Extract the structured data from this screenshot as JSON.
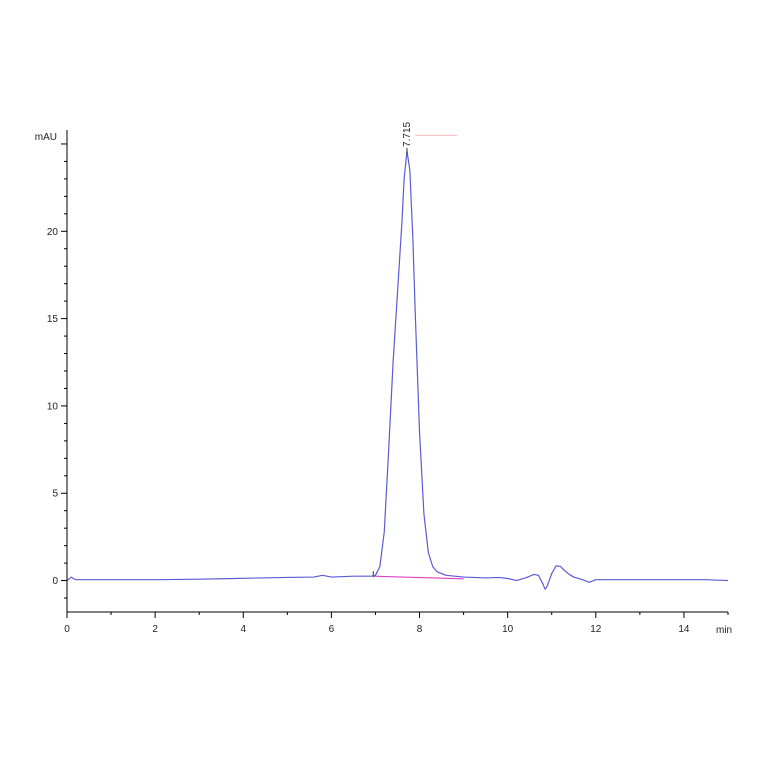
{
  "chart_data": {
    "type": "line",
    "title": "",
    "xlabel": "min",
    "ylabel": "mAU",
    "xlim": [
      0,
      15
    ],
    "ylim": [
      -1.8,
      25.8
    ],
    "x_ticks": [
      0,
      2,
      4,
      6,
      8,
      10,
      12,
      14
    ],
    "y_ticks": [
      0,
      5,
      10,
      15,
      20
    ],
    "grid": false,
    "legend": "none",
    "colors": {
      "trace": "#5b5bd6",
      "baseline": "#e040c0",
      "axis": "#000000"
    },
    "series": [
      {
        "color": "#5b5bd6",
        "points": [
          [
            0.0,
            0.0
          ],
          [
            0.05,
            0.1
          ],
          [
            0.1,
            0.2
          ],
          [
            0.15,
            0.1
          ],
          [
            0.2,
            0.05
          ],
          [
            0.5,
            0.05
          ],
          [
            1.0,
            0.05
          ],
          [
            2.0,
            0.05
          ],
          [
            3.0,
            0.08
          ],
          [
            3.8,
            0.12
          ],
          [
            4.0,
            0.13
          ],
          [
            5.0,
            0.18
          ],
          [
            5.6,
            0.2
          ],
          [
            5.8,
            0.3
          ],
          [
            6.0,
            0.2
          ],
          [
            6.5,
            0.25
          ],
          [
            6.9,
            0.25
          ],
          [
            7.0,
            0.3
          ],
          [
            7.1,
            0.8
          ],
          [
            7.2,
            2.8
          ],
          [
            7.3,
            7.5
          ],
          [
            7.4,
            12.5
          ],
          [
            7.5,
            16.5
          ],
          [
            7.6,
            20.5
          ],
          [
            7.65,
            23.0
          ],
          [
            7.715,
            24.6
          ],
          [
            7.78,
            23.5
          ],
          [
            7.85,
            19.5
          ],
          [
            7.9,
            15.5
          ],
          [
            8.0,
            8.5
          ],
          [
            8.1,
            3.8
          ],
          [
            8.2,
            1.6
          ],
          [
            8.3,
            0.8
          ],
          [
            8.4,
            0.5
          ],
          [
            8.6,
            0.3
          ],
          [
            9.0,
            0.2
          ],
          [
            9.5,
            0.15
          ],
          [
            9.8,
            0.18
          ],
          [
            10.0,
            0.12
          ],
          [
            10.2,
            0.0
          ],
          [
            10.4,
            0.15
          ],
          [
            10.6,
            0.35
          ],
          [
            10.7,
            0.3
          ],
          [
            10.8,
            -0.2
          ],
          [
            10.85,
            -0.5
          ],
          [
            10.9,
            -0.3
          ],
          [
            11.0,
            0.4
          ],
          [
            11.1,
            0.85
          ],
          [
            11.2,
            0.8
          ],
          [
            11.3,
            0.55
          ],
          [
            11.4,
            0.35
          ],
          [
            11.5,
            0.2
          ],
          [
            11.7,
            0.05
          ],
          [
            11.85,
            -0.1
          ],
          [
            12.0,
            0.05
          ],
          [
            12.5,
            0.05
          ],
          [
            13.0,
            0.05
          ],
          [
            14.0,
            0.05
          ],
          [
            14.5,
            0.05
          ],
          [
            15.0,
            0.0
          ]
        ]
      }
    ],
    "baseline_segment": {
      "color": "#e040c0",
      "points": [
        [
          6.95,
          0.25
        ],
        [
          9.0,
          0.1
        ]
      ]
    },
    "peak_marker_segment": {
      "color": "#f4b8b8",
      "points": [
        [
          7.9,
          25.5
        ],
        [
          8.85,
          25.5
        ]
      ]
    },
    "annotations": [
      {
        "text": "7.715",
        "x": 7.715,
        "y": 24.6
      }
    ]
  }
}
